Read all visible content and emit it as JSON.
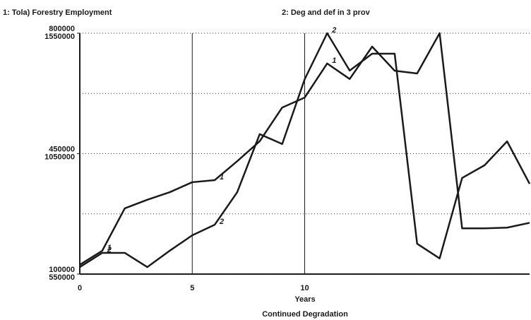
{
  "chart_data": {
    "type": "line",
    "titles": [
      "1: Tola) Forestry Employment",
      "2: Deg and def in 3 prov"
    ],
    "xlabel": "Years",
    "subtitle": "Continued Degradation",
    "x": [
      0,
      1,
      2,
      3,
      4,
      5,
      6,
      7,
      8,
      9,
      10,
      11,
      12,
      13,
      14,
      15,
      16,
      17,
      18,
      19,
      20
    ],
    "xlim": [
      0,
      20
    ],
    "xticks": [
      0,
      5,
      10
    ],
    "ylim": [
      100000,
      800000
    ],
    "yticks": [
      100000,
      450000,
      800000
    ],
    "y2lim": [
      550000,
      1550000
    ],
    "y2ticks": [
      550000,
      1050000,
      1550000
    ],
    "grid": true,
    "series": [
      {
        "name": "1",
        "color": "#1a1a1a",
        "values": [
          127000,
          168000,
          291000,
          316000,
          338000,
          367000,
          373000,
          428000,
          486000,
          584000,
          613000,
          712000,
          667000,
          761000,
          691000,
          683000,
          800000,
          233000,
          233000,
          235000,
          249000
        ]
      },
      {
        "name": "2",
        "color": "#1a1a1a",
        "axis": "y2",
        "values": [
          579000,
          638000,
          638000,
          579000,
          647000,
          711000,
          755000,
          890000,
          1131000,
          1090000,
          1359000,
          1550000,
          1395000,
          1465000,
          1465000,
          676000,
          615000,
          949000,
          1002000,
          1101000,
          925000
        ]
      }
    ]
  }
}
